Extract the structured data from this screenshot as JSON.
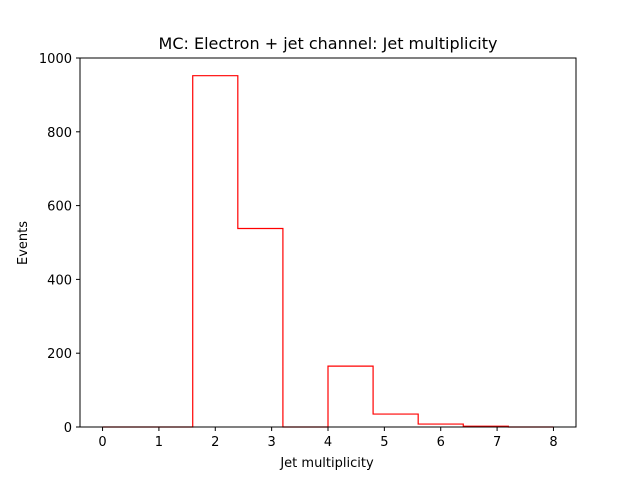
{
  "chart_data": {
    "type": "bar",
    "title": "MC: Electron + jet channel: Jet multiplicity",
    "xlabel": "Jet multiplicity",
    "ylabel": "Events",
    "xlim": [
      -0.4,
      8.4
    ],
    "ylim": [
      0,
      1000
    ],
    "xticks": [
      0,
      1,
      2,
      3,
      4,
      5,
      6,
      7,
      8
    ],
    "yticks": [
      0,
      200,
      400,
      600,
      800,
      1000
    ],
    "histtype": "step",
    "bin_edges": [
      0,
      0.8,
      1.6,
      2.4,
      3.2,
      4.0,
      4.8,
      5.6,
      6.4,
      7.2,
      8.0
    ],
    "values": [
      0,
      0,
      952,
      538,
      0,
      165,
      35,
      8,
      2,
      0
    ],
    "color": "#ff0000",
    "grid": false
  }
}
